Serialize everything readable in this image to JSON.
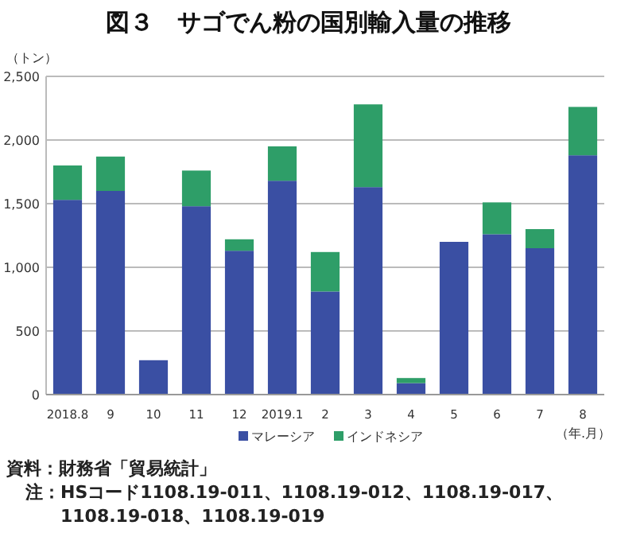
{
  "chart_data": {
    "type": "bar",
    "title": "図３　サゴでん粉の国別輸入量の推移",
    "ylabel": "（トン）",
    "xlabel": "（年.月）",
    "categories": [
      "2018.8",
      "9",
      "10",
      "11",
      "12",
      "2019.1",
      "2",
      "3",
      "4",
      "5",
      "6",
      "7",
      "8"
    ],
    "stacked": true,
    "series": [
      {
        "name": "マレーシア",
        "color": "#3a4fa3",
        "values": [
          1530,
          1600,
          270,
          1480,
          1130,
          1680,
          810,
          1630,
          90,
          1200,
          1260,
          1150,
          1880
        ]
      },
      {
        "name": "インドネシア",
        "color": "#2e9e68",
        "values": [
          270,
          270,
          0,
          280,
          90,
          270,
          310,
          650,
          40,
          0,
          250,
          150,
          380
        ]
      }
    ],
    "ylim": [
      0,
      2500
    ],
    "yticks": [
      {
        "value": 0,
        "label": "0"
      },
      {
        "value": 500,
        "label": "500"
      },
      {
        "value": 1000,
        "label": "1,000"
      },
      {
        "value": 1500,
        "label": "1,500"
      },
      {
        "value": 2000,
        "label": "2,000"
      },
      {
        "value": 2500,
        "label": "2,500"
      }
    ],
    "grid": "y",
    "legend": "bottom",
    "annotations": [
      "資料：財務省「貿易統計」",
      "注：HSコード1108.19-011、1108.19-012、1108.19-017、1108.19-018、1108.19-019"
    ]
  }
}
